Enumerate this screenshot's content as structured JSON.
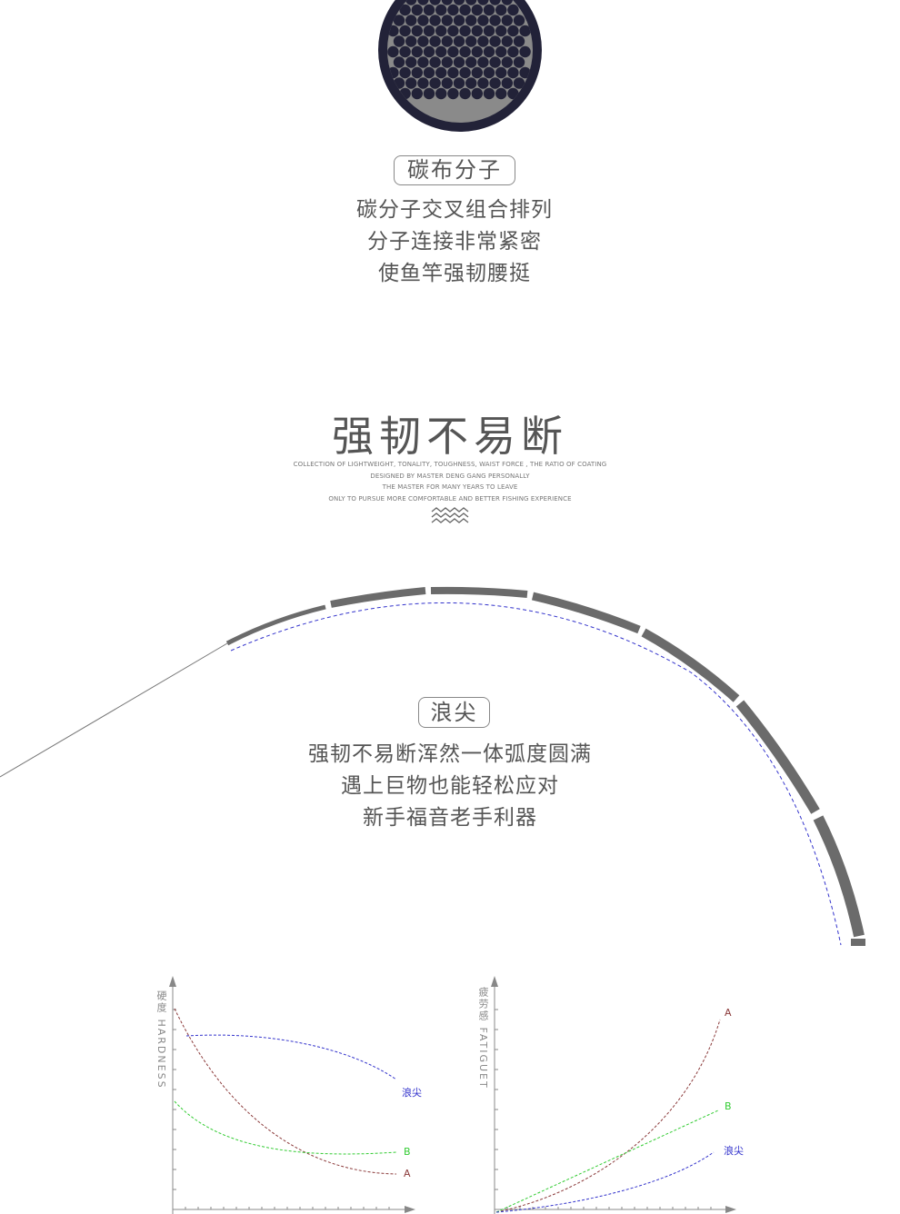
{
  "section1": {
    "pill": "碳布分子",
    "lines": [
      "碳分子交叉组合排列",
      "分子连接非常紧密",
      "使鱼竿强韧腰挺"
    ]
  },
  "section2": {
    "title": "强韧不易断",
    "english": [
      "COLLECTION OF LIGHTWEIGHT, TONALITY, TOUGHNESS, WAIST FORCE , THE RATIO OF COATING",
      "DESIGNED BY MASTER DENG GANG PERSONALLY",
      "THE MASTER FOR MANY YEARS TO LEAVE",
      "ONLY TO PURSUE MORE COMFORTABLE AND BETTER FISHING EXPERIENCE"
    ],
    "wave_icon": "triple-wave-icon"
  },
  "section3": {
    "pill": "浪尖",
    "lines": [
      "强韧不易断浑然一体弧度圆满",
      "遇上巨物也能轻松应对",
      "新手福音老手利器"
    ]
  },
  "charts": {
    "colors": {
      "lang_jian": "#3333cc",
      "a": "#8b3a3a",
      "b": "#33cc33",
      "rod": "#6b6b6b",
      "axis": "#888888"
    },
    "hardness": {
      "ylabel": "硬度 HARDNESS",
      "labels": {
        "lang_jian": "浪尖",
        "b": "B",
        "a": "A"
      }
    },
    "fatigue": {
      "ylabel": "疲劳感 FATIGUET",
      "labels": {
        "a": "A",
        "b": "B",
        "lang_jian": "浪尖"
      }
    }
  }
}
